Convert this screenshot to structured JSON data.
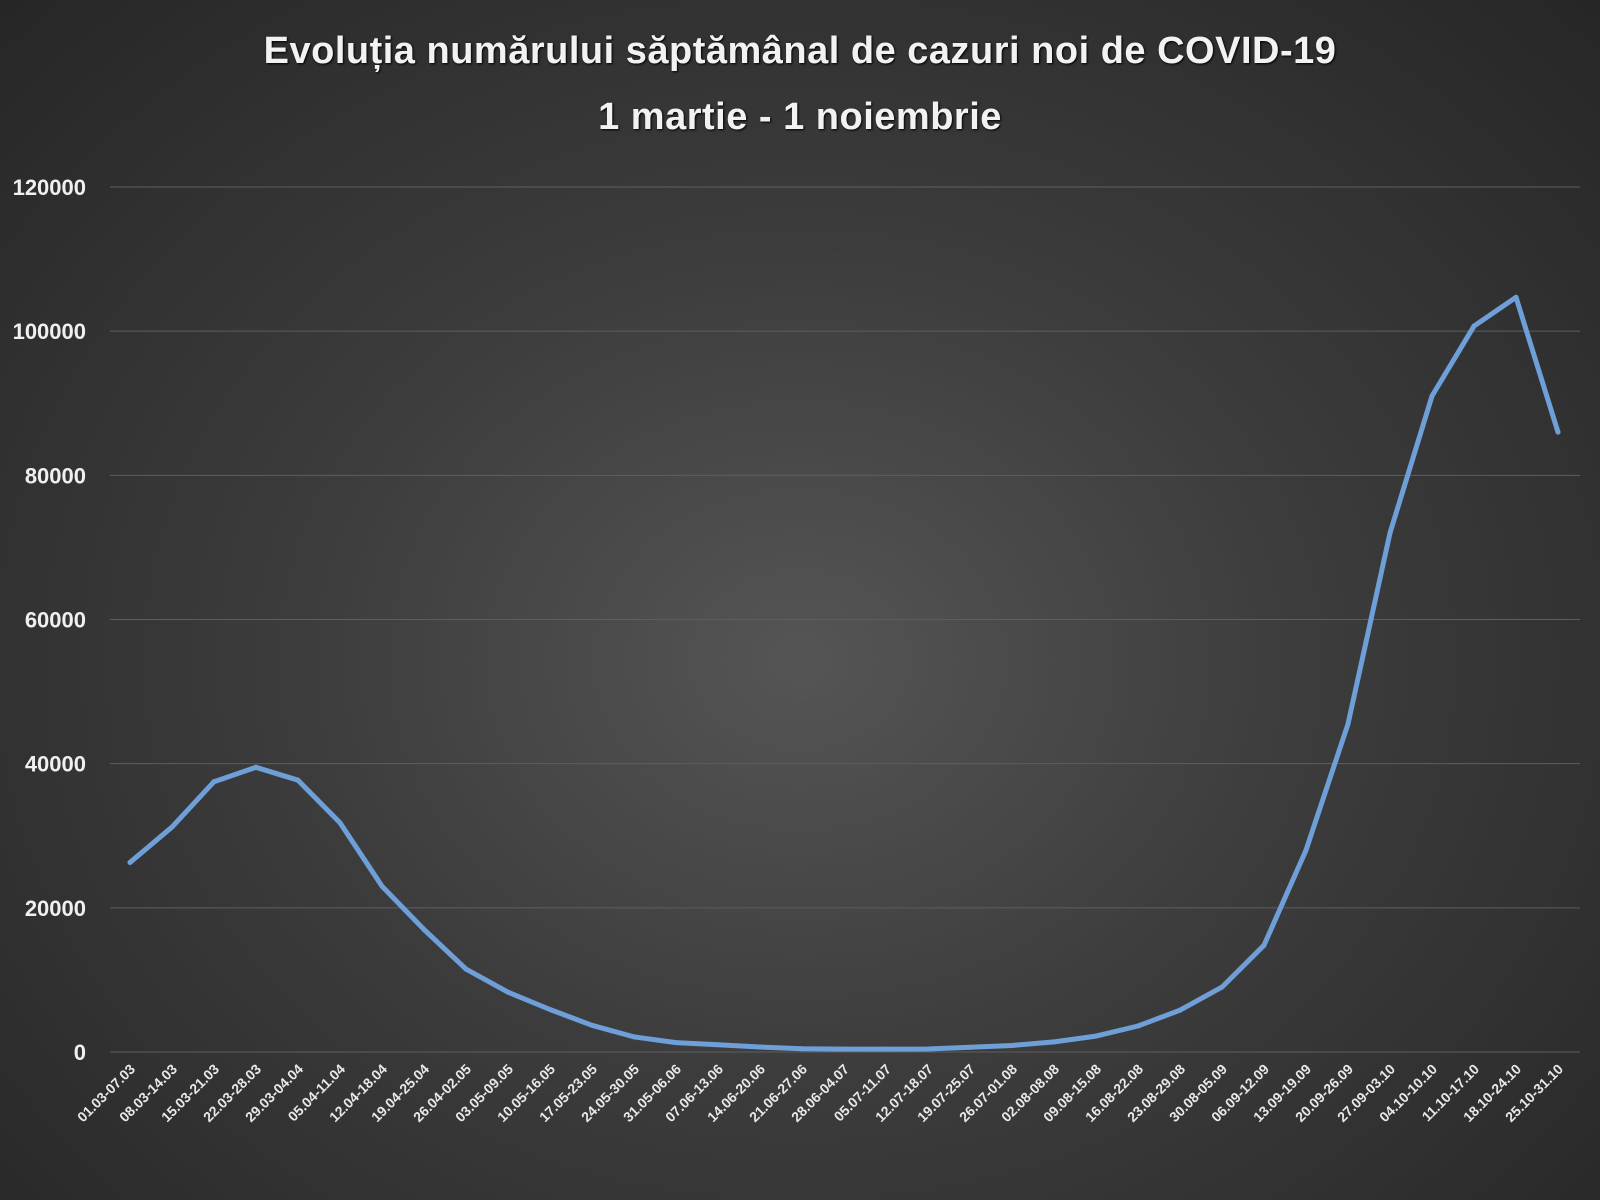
{
  "chart_data": {
    "type": "line",
    "title": "Evoluția numărului săptămânal de cazuri noi de COVID-19",
    "subtitle": "1 martie - 1 noiembrie",
    "xlabel": "",
    "ylabel": "",
    "ylim": [
      0,
      120000
    ],
    "yticks": [
      "0",
      "20000",
      "40000",
      "60000",
      "80000",
      "100000",
      "120000"
    ],
    "grid": true,
    "legend": "none",
    "line_color": "#6f9fd8",
    "categories": [
      "01.03-07.03",
      "08.03-14.03",
      "15.03-21.03",
      "22.03-28.03",
      "29.03-04.04",
      "05.04-11.04",
      "12.04-18.04",
      "19.04-25.04",
      "26.04-02.05",
      "03.05-09.05",
      "10.05-16.05",
      "17.05-23.05",
      "24.05-30.05",
      "31.05-06.06",
      "07.06-13.06",
      "14.06-20.06",
      "21.06-27.06",
      "28.06-04.07",
      "05.07-11.07",
      "12.07-18.07",
      "19.07-25.07",
      "26.07-01.08",
      "02.08-08.08",
      "09.08-15.08",
      "16.08-22.08",
      "23.08-29.08",
      "30.08-05.09",
      "06.09-12.09",
      "13.09-19.09",
      "20.09-26.09",
      "27.09-03.10",
      "04.10-10.10",
      "11.10-17.10",
      "18.10-24.10",
      "25.10-31.10"
    ],
    "series": [
      {
        "values": [
          26300,
          31200,
          37500,
          39500,
          37700,
          31800,
          23000,
          17000,
          11500,
          8300,
          5900,
          3700,
          2100,
          1300,
          1000,
          700,
          450,
          400,
          400,
          420,
          650,
          900,
          1400,
          2200,
          3600,
          5800,
          9000,
          14800,
          28000,
          45500,
          72000,
          91000,
          100700,
          104700,
          86000
        ]
      }
    ]
  }
}
